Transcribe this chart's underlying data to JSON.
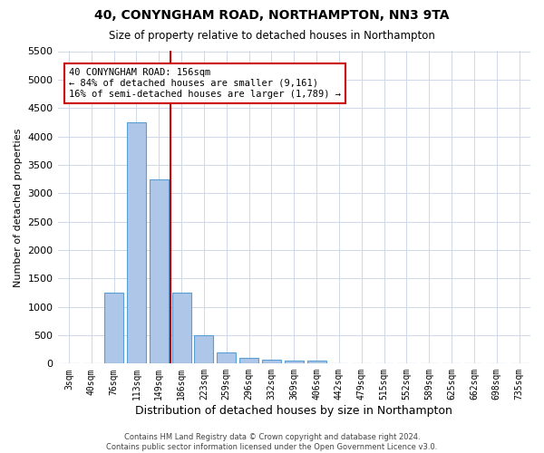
{
  "title": "40, CONYNGHAM ROAD, NORTHAMPTON, NN3 9TA",
  "subtitle": "Size of property relative to detached houses in Northampton",
  "xlabel": "Distribution of detached houses by size in Northampton",
  "ylabel": "Number of detached properties",
  "footnote": "Contains HM Land Registry data © Crown copyright and database right 2024.\nContains public sector information licensed under the Open Government Licence v3.0.",
  "bin_labels": [
    "3sqm",
    "40sqm",
    "76sqm",
    "113sqm",
    "149sqm",
    "186sqm",
    "223sqm",
    "259sqm",
    "296sqm",
    "332sqm",
    "369sqm",
    "406sqm",
    "442sqm",
    "479sqm",
    "515sqm",
    "552sqm",
    "589sqm",
    "625sqm",
    "662sqm",
    "698sqm",
    "735sqm"
  ],
  "bar_values": [
    0,
    0,
    1250,
    4250,
    3250,
    1250,
    500,
    200,
    100,
    75,
    50,
    50,
    0,
    0,
    0,
    0,
    0,
    0,
    0,
    0,
    0
  ],
  "bar_color": "#aec6e8",
  "bar_edge_color": "#5a9fd4",
  "vline_color": "#cc0000",
  "annotation_text": "40 CONYNGHAM ROAD: 156sqm\n← 84% of detached houses are smaller (9,161)\n16% of semi-detached houses are larger (1,789) →",
  "annotation_box_color": "#ffffff",
  "annotation_box_edge_color": "#cc0000",
  "ylim": [
    0,
    5500
  ],
  "ytick_step": 500,
  "background_color": "#ffffff",
  "grid_color": "#d0d8e8"
}
